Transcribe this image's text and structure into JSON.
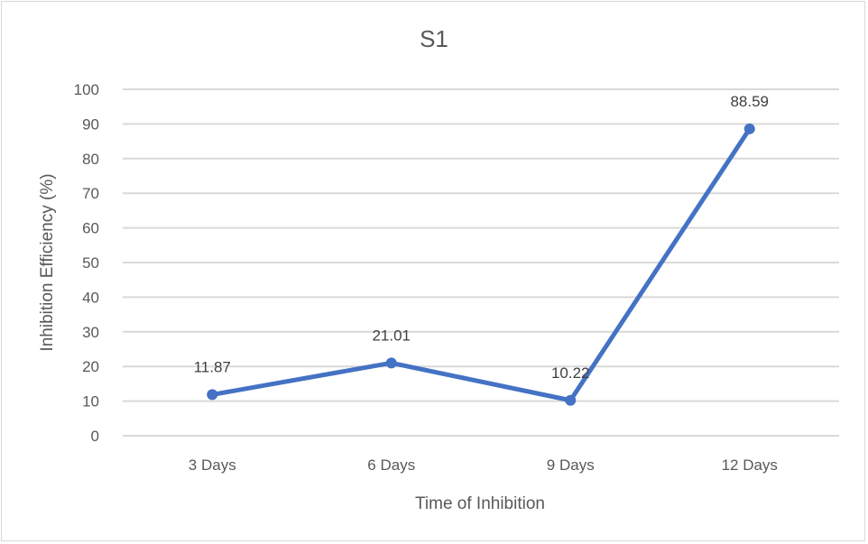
{
  "chart_data": {
    "type": "line",
    "title": "S1",
    "xlabel": "Time of Inhibition",
    "ylabel": "Inhibition Efficiency (%)",
    "categories": [
      "3 Days",
      "6 Days",
      "9 Days",
      "12 Days"
    ],
    "series": [
      {
        "name": "S1",
        "values": [
          11.87,
          21.01,
          10.22,
          88.59
        ],
        "color": "#4472c4"
      }
    ],
    "data_labels": [
      "11.87",
      "21.01",
      "10.22",
      "88.59"
    ],
    "ylim": [
      0,
      100
    ],
    "yticks": [
      "0",
      "10",
      "20",
      "30",
      "40",
      "50",
      "60",
      "70",
      "80",
      "90",
      "100"
    ],
    "grid": true,
    "legend": "none"
  }
}
